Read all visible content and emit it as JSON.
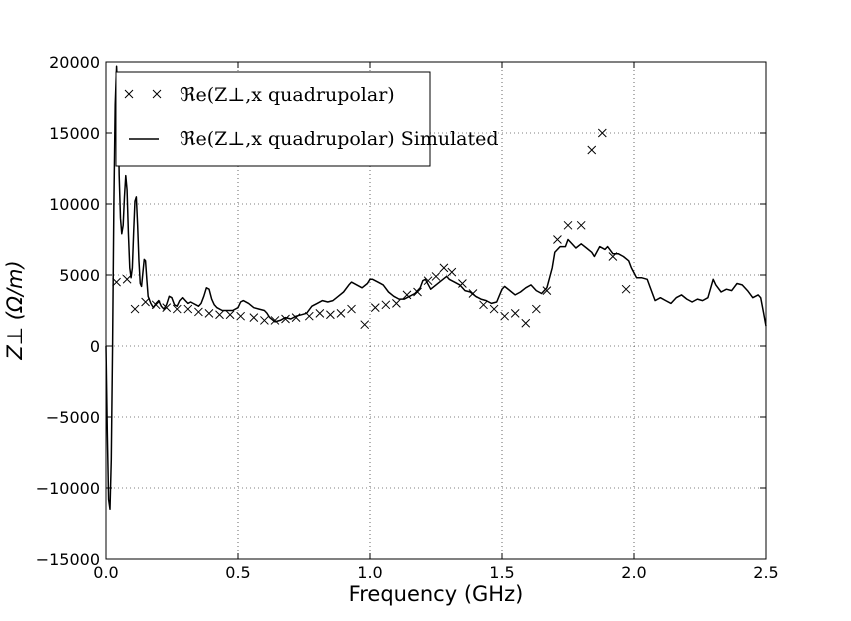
{
  "chart_data": {
    "type": "line",
    "xlabel": "Frequency (GHz)",
    "ylabel": "Z⊥ (Ω/m)",
    "xlim": [
      0.0,
      2.5
    ],
    "ylim": [
      -15000,
      20000
    ],
    "xticks": [
      0.0,
      0.5,
      1.0,
      1.5,
      2.0,
      2.5
    ],
    "xtick_labels": [
      "0.0",
      "0.5",
      "1.0",
      "1.5",
      "2.0",
      "2.5"
    ],
    "yticks": [
      -15000,
      -10000,
      -5000,
      0,
      5000,
      10000,
      15000,
      20000
    ],
    "ytick_labels": [
      "−15000",
      "−10000",
      "−5000",
      "0",
      "5000",
      "10000",
      "15000",
      "20000"
    ],
    "grid": true,
    "legend_position": "top-left",
    "series": [
      {
        "name": "ℜe(Z⊥,x quadrupolar)",
        "style": "markers-x",
        "color": "#000000",
        "points": [
          [
            0.04,
            4500
          ],
          [
            0.08,
            4700
          ],
          [
            0.11,
            2600
          ],
          [
            0.15,
            3100
          ],
          [
            0.19,
            2900
          ],
          [
            0.23,
            2700
          ],
          [
            0.27,
            2600
          ],
          [
            0.31,
            2600
          ],
          [
            0.35,
            2400
          ],
          [
            0.39,
            2300
          ],
          [
            0.43,
            2200
          ],
          [
            0.47,
            2200
          ],
          [
            0.51,
            2100
          ],
          [
            0.56,
            2000
          ],
          [
            0.6,
            1800
          ],
          [
            0.64,
            1800
          ],
          [
            0.68,
            1900
          ],
          [
            0.72,
            2000
          ],
          [
            0.77,
            2100
          ],
          [
            0.81,
            2300
          ],
          [
            0.85,
            2200
          ],
          [
            0.89,
            2300
          ],
          [
            0.93,
            2600
          ],
          [
            0.98,
            1500
          ],
          [
            1.02,
            2700
          ],
          [
            1.06,
            2900
          ],
          [
            1.1,
            3000
          ],
          [
            1.14,
            3600
          ],
          [
            1.18,
            3800
          ],
          [
            1.22,
            4600
          ],
          [
            1.25,
            4900
          ],
          [
            1.28,
            5500
          ],
          [
            1.31,
            5200
          ],
          [
            1.35,
            4400
          ],
          [
            1.39,
            3700
          ],
          [
            1.43,
            2900
          ],
          [
            1.47,
            2600
          ],
          [
            1.51,
            2100
          ],
          [
            1.55,
            2300
          ],
          [
            1.59,
            1600
          ],
          [
            1.63,
            2600
          ],
          [
            1.67,
            3900
          ],
          [
            1.71,
            7500
          ],
          [
            1.75,
            8500
          ],
          [
            1.8,
            8500
          ],
          [
            1.84,
            13800
          ],
          [
            1.88,
            15000
          ],
          [
            1.92,
            6300
          ],
          [
            1.97,
            4000
          ]
        ]
      },
      {
        "name": "ℜe(Z⊥,x quadrupolar) Simulated",
        "style": "line",
        "color": "#000000",
        "points": [
          [
            0.0,
            0
          ],
          [
            0.005,
            -6000
          ],
          [
            0.01,
            -10800
          ],
          [
            0.015,
            -11500
          ],
          [
            0.02,
            -8000
          ],
          [
            0.025,
            0
          ],
          [
            0.03,
            10000
          ],
          [
            0.035,
            17000
          ],
          [
            0.04,
            19700
          ],
          [
            0.045,
            17500
          ],
          [
            0.05,
            12000
          ],
          [
            0.055,
            9000
          ],
          [
            0.06,
            7900
          ],
          [
            0.065,
            8500
          ],
          [
            0.07,
            10500
          ],
          [
            0.075,
            12000
          ],
          [
            0.08,
            11000
          ],
          [
            0.085,
            8000
          ],
          [
            0.09,
            5500
          ],
          [
            0.095,
            4800
          ],
          [
            0.1,
            5500
          ],
          [
            0.105,
            8000
          ],
          [
            0.11,
            10200
          ],
          [
            0.115,
            10500
          ],
          [
            0.12,
            8500
          ],
          [
            0.125,
            6000
          ],
          [
            0.13,
            4400
          ],
          [
            0.135,
            4200
          ],
          [
            0.14,
            5200
          ],
          [
            0.145,
            6100
          ],
          [
            0.15,
            6000
          ],
          [
            0.155,
            4700
          ],
          [
            0.16,
            3500
          ],
          [
            0.17,
            3000
          ],
          [
            0.18,
            2700
          ],
          [
            0.19,
            3000
          ],
          [
            0.2,
            3200
          ],
          [
            0.21,
            2800
          ],
          [
            0.22,
            2600
          ],
          [
            0.23,
            2900
          ],
          [
            0.24,
            3500
          ],
          [
            0.25,
            3400
          ],
          [
            0.26,
            2900
          ],
          [
            0.27,
            2800
          ],
          [
            0.28,
            3200
          ],
          [
            0.29,
            3400
          ],
          [
            0.3,
            3200
          ],
          [
            0.31,
            3000
          ],
          [
            0.32,
            3100
          ],
          [
            0.33,
            3000
          ],
          [
            0.34,
            2900
          ],
          [
            0.35,
            2800
          ],
          [
            0.36,
            3000
          ],
          [
            0.37,
            3500
          ],
          [
            0.38,
            4100
          ],
          [
            0.39,
            4000
          ],
          [
            0.4,
            3300
          ],
          [
            0.41,
            2900
          ],
          [
            0.42,
            2700
          ],
          [
            0.44,
            2500
          ],
          [
            0.46,
            2500
          ],
          [
            0.48,
            2500
          ],
          [
            0.5,
            2700
          ],
          [
            0.51,
            3100
          ],
          [
            0.52,
            3200
          ],
          [
            0.54,
            3000
          ],
          [
            0.56,
            2700
          ],
          [
            0.58,
            2600
          ],
          [
            0.6,
            2500
          ],
          [
            0.61,
            2300
          ],
          [
            0.62,
            2000
          ],
          [
            0.64,
            1700
          ],
          [
            0.66,
            1800
          ],
          [
            0.68,
            2000
          ],
          [
            0.7,
            1900
          ],
          [
            0.72,
            2100
          ],
          [
            0.74,
            2200
          ],
          [
            0.76,
            2300
          ],
          [
            0.78,
            2800
          ],
          [
            0.8,
            3000
          ],
          [
            0.82,
            3200
          ],
          [
            0.84,
            3100
          ],
          [
            0.86,
            3200
          ],
          [
            0.88,
            3500
          ],
          [
            0.9,
            3800
          ],
          [
            0.92,
            4300
          ],
          [
            0.93,
            4500
          ],
          [
            0.95,
            4300
          ],
          [
            0.97,
            4100
          ],
          [
            0.99,
            4400
          ],
          [
            1.0,
            4700
          ],
          [
            1.01,
            4700
          ],
          [
            1.03,
            4500
          ],
          [
            1.05,
            4300
          ],
          [
            1.07,
            3800
          ],
          [
            1.09,
            3500
          ],
          [
            1.11,
            3300
          ],
          [
            1.13,
            3300
          ],
          [
            1.15,
            3500
          ],
          [
            1.17,
            3700
          ],
          [
            1.19,
            4100
          ],
          [
            1.2,
            4600
          ],
          [
            1.21,
            4700
          ],
          [
            1.23,
            4000
          ],
          [
            1.25,
            4300
          ],
          [
            1.27,
            4600
          ],
          [
            1.29,
            4900
          ],
          [
            1.3,
            4700
          ],
          [
            1.32,
            4500
          ],
          [
            1.34,
            4300
          ],
          [
            1.36,
            3900
          ],
          [
            1.38,
            3800
          ],
          [
            1.4,
            3500
          ],
          [
            1.42,
            3300
          ],
          [
            1.44,
            3200
          ],
          [
            1.46,
            3000
          ],
          [
            1.48,
            3100
          ],
          [
            1.5,
            4000
          ],
          [
            1.51,
            4200
          ],
          [
            1.53,
            3900
          ],
          [
            1.55,
            3600
          ],
          [
            1.57,
            3800
          ],
          [
            1.59,
            4100
          ],
          [
            1.61,
            4300
          ],
          [
            1.63,
            3900
          ],
          [
            1.65,
            3700
          ],
          [
            1.67,
            4100
          ],
          [
            1.69,
            5500
          ],
          [
            1.7,
            6600
          ],
          [
            1.72,
            7000
          ],
          [
            1.74,
            7000
          ],
          [
            1.75,
            7500
          ],
          [
            1.76,
            7300
          ],
          [
            1.78,
            6900
          ],
          [
            1.8,
            7200
          ],
          [
            1.82,
            6900
          ],
          [
            1.84,
            6600
          ],
          [
            1.85,
            6300
          ],
          [
            1.87,
            7000
          ],
          [
            1.89,
            6800
          ],
          [
            1.9,
            7000
          ],
          [
            1.92,
            6500
          ],
          [
            1.94,
            6500
          ],
          [
            1.96,
            6300
          ],
          [
            1.98,
            6000
          ],
          [
            1.99,
            5500
          ],
          [
            2.01,
            4800
          ],
          [
            2.03,
            4800
          ],
          [
            2.05,
            4700
          ],
          [
            2.06,
            4200
          ],
          [
            2.08,
            3200
          ],
          [
            2.1,
            3400
          ],
          [
            2.12,
            3200
          ],
          [
            2.14,
            3000
          ],
          [
            2.16,
            3400
          ],
          [
            2.18,
            3600
          ],
          [
            2.2,
            3300
          ],
          [
            2.22,
            3100
          ],
          [
            2.24,
            3300
          ],
          [
            2.26,
            3200
          ],
          [
            2.28,
            3400
          ],
          [
            2.3,
            4700
          ],
          [
            2.31,
            4300
          ],
          [
            2.33,
            3800
          ],
          [
            2.35,
            4000
          ],
          [
            2.37,
            3900
          ],
          [
            2.39,
            4400
          ],
          [
            2.41,
            4300
          ],
          [
            2.43,
            3900
          ],
          [
            2.45,
            3400
          ],
          [
            2.47,
            3600
          ],
          [
            2.48,
            3400
          ],
          [
            2.49,
            2400
          ],
          [
            2.5,
            1400
          ]
        ]
      }
    ]
  }
}
